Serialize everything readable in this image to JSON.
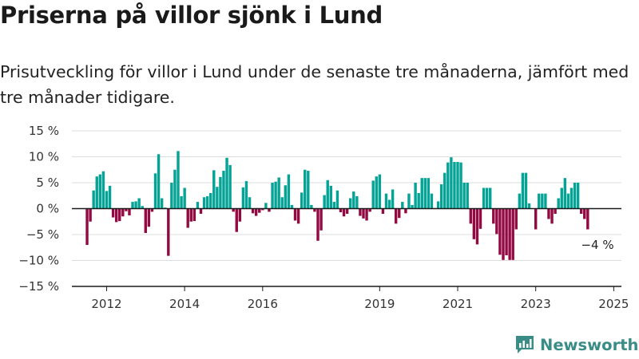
{
  "title": "Priserna på villor sjönk i Lund",
  "subtitle": "Prisutveckling för villor i Lund under de senaste tre månaderna, jämfört med tre månader tidigare.",
  "brand": {
    "name": "Newsworthy"
  },
  "colors": {
    "positive": "#05a396",
    "negative": "#930a43",
    "axis": "#1a1a1a",
    "grid": "#dddddd",
    "brand": "#3a8c87"
  },
  "chart_data": {
    "type": "bar",
    "title": "",
    "xlabel": "",
    "ylabel": "",
    "unit": "%",
    "ylim": [
      -15,
      15
    ],
    "y_ticks": [
      {
        "value": 15,
        "label": "15 %"
      },
      {
        "value": 10,
        "label": "10 %"
      },
      {
        "value": 5,
        "label": "5 %"
      },
      {
        "value": 0,
        "label": "0 %"
      },
      {
        "value": -5,
        "label": "−5 %"
      },
      {
        "value": -10,
        "label": "−10 %"
      },
      {
        "value": -15,
        "label": "−15 %"
      }
    ],
    "x_ticks": [
      {
        "label": "2012",
        "month_index": 6
      },
      {
        "label": "2014",
        "month_index": 30
      },
      {
        "label": "2016",
        "month_index": 54
      },
      {
        "label": "2019",
        "month_index": 90
      },
      {
        "label": "2021",
        "month_index": 114
      },
      {
        "label": "2023",
        "month_index": 138
      },
      {
        "label": "2025",
        "month_index": 162
      }
    ],
    "grid": true,
    "start": "2011-12",
    "annotation": {
      "label": "−4 %",
      "month_index": 157
    },
    "values": [
      -7,
      -2.5,
      3.5,
      6.2,
      6.6,
      7.2,
      3.4,
      4.4,
      -1.7,
      -2.6,
      -2.4,
      -1.5,
      -0.5,
      -1.3,
      1.3,
      1.4,
      2.0,
      0.5,
      -4.7,
      -3.5,
      -0.6,
      6.8,
      10.5,
      2.0,
      0.2,
      -9.1,
      5.0,
      7.5,
      11.1,
      2.4,
      4.0,
      -3.7,
      -2.5,
      -2.4,
      1.3,
      -1.0,
      2.2,
      2.4,
      3.0,
      7.4,
      4.2,
      6.1,
      7.3,
      9.8,
      8.4,
      -0.6,
      -4.5,
      -2.5,
      4.1,
      5.3,
      2.2,
      -0.9,
      -1.4,
      -0.8,
      -0.3,
      1.1,
      -0.6,
      5.0,
      5.2,
      6.0,
      2.2,
      4.5,
      6.6,
      0.7,
      -2.3,
      -2.9,
      3.1,
      7.5,
      7.3,
      0.7,
      -0.6,
      -6.2,
      -4.2,
      2.6,
      5.5,
      4.4,
      1.3,
      3.5,
      -0.7,
      -1.5,
      -1.0,
      2.0,
      3.3,
      2.4,
      -1.4,
      -1.9,
      -2.3,
      -0.6,
      5.4,
      6.2,
      6.6,
      -1.0,
      2.9,
      1.7,
      3.7,
      -2.9,
      -1.8,
      1.3,
      -0.9,
      2.9,
      0.7,
      5.0,
      3.0,
      5.9,
      5.9,
      5.9,
      2.9,
      0.1,
      1.4,
      4.7,
      6.9,
      8.9,
      9.9,
      9.0,
      9.0,
      8.9,
      5.0,
      5.0,
      -2.9,
      -5.9,
      -6.9,
      -3.9,
      4.0,
      4.0,
      4.0,
      -2.9,
      -4.9,
      -8.9,
      -9.9,
      -9.0,
      -9.9,
      -9.9,
      -4.0,
      2.9,
      6.9,
      6.9,
      1.0,
      0,
      -4.0,
      2.9,
      2.9,
      2.9,
      -2.0,
      -2.9,
      -1.0,
      2.0,
      4.0,
      5.9,
      2.9,
      4.0,
      5.0,
      5.0,
      -1.0,
      -2.0,
      -4.0
    ]
  }
}
